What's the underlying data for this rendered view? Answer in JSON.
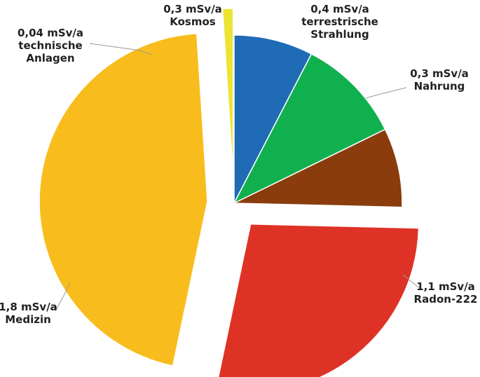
{
  "chart_data": {
    "type": "pie",
    "title": "",
    "unit": "mSv/a",
    "slices": [
      {
        "value": 0.3,
        "value_label": "0,3 mSv/a",
        "label": [
          "Kosmos"
        ],
        "color": "#1f6bb5",
        "exploded": false
      },
      {
        "value": 0.4,
        "value_label": "0,4 mSv/a",
        "label": [
          "terrestrische",
          "Strahlung"
        ],
        "color": "#11b04f",
        "exploded": false
      },
      {
        "value": 0.3,
        "value_label": "0,3 mSv/a",
        "label": [
          "Nahrung"
        ],
        "color": "#8a3c0c",
        "exploded": false
      },
      {
        "value": 1.1,
        "value_label": "1,1 mSv/a",
        "label": [
          "Radon-222"
        ],
        "color": "#df3226",
        "exploded": true
      },
      {
        "value": 1.8,
        "value_label": "1,8 mSv/a",
        "label": [
          "Medizin"
        ],
        "color": "#f8bd1d",
        "exploded": true
      },
      {
        "value": 0.04,
        "value_label": "0,04 mSv/a",
        "label": [
          "technische",
          "Anlagen"
        ],
        "color": "#ece432",
        "exploded": true
      }
    ]
  }
}
